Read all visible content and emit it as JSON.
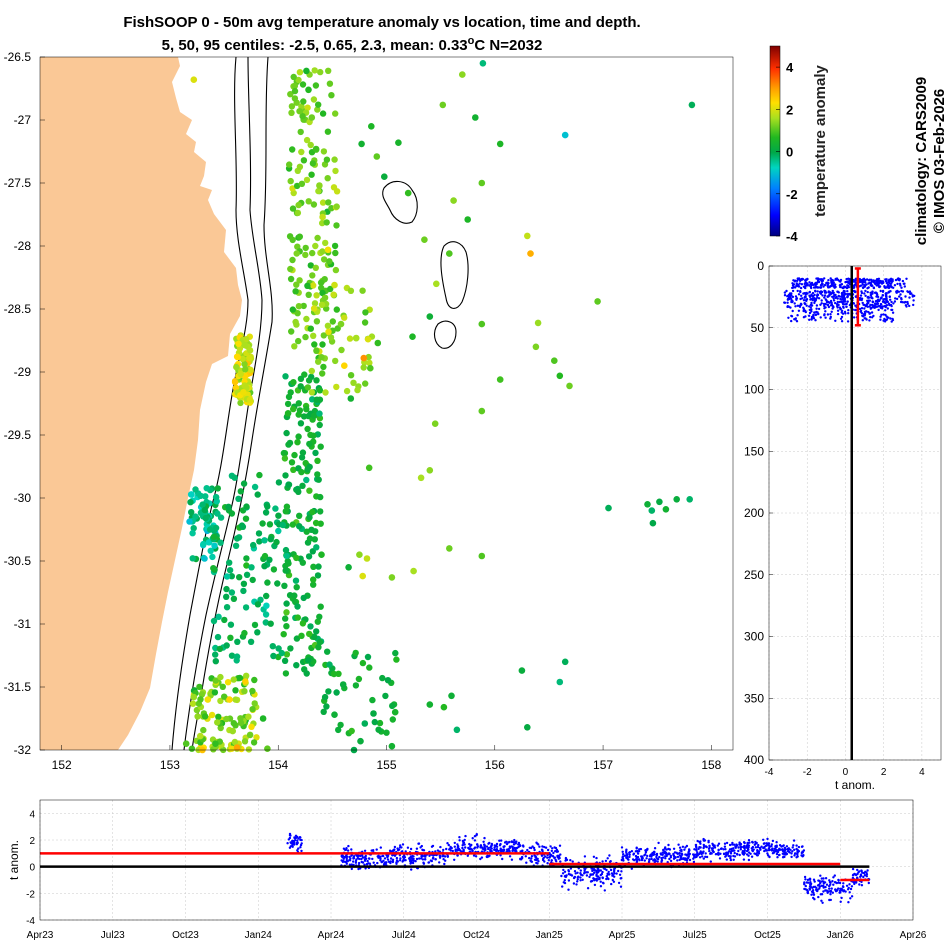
{
  "title": {
    "line1": "FishSOOP 0 - 50m avg temperature anomaly vs location, time and depth.",
    "line2_prefix": "5, 50, 95 centiles: -2.5, 0.65, 2.3, mean: 0.33",
    "line2_degree": "o",
    "line2_suffix": "C N=2032"
  },
  "side_note": {
    "line1": "climatology: CARS2009",
    "line2": "© IMOS 03-Feb-2026"
  },
  "colors": {
    "land": "#FAC896",
    "ocean": "#FFFFFF",
    "contour": "#000000",
    "scatter_blue": "#0000FF",
    "stat_red": "#FF0000",
    "zero_line": "#000000",
    "grid": "#C8C8C8"
  },
  "chart_data": [
    {
      "type": "scatter",
      "name": "map",
      "title": "FishSOOP 0 - 50m avg temperature anomaly vs location, time and depth.",
      "xlabel": "",
      "ylabel": "",
      "xlim": [
        151.8,
        158.2
      ],
      "ylim": [
        -32,
        -26.5
      ],
      "xticks": [
        152,
        153,
        154,
        155,
        156,
        157,
        158
      ],
      "yticks": [
        -26.5,
        -27,
        -27.5,
        -28,
        -28.5,
        -29,
        -29.5,
        -30,
        -30.5,
        -31,
        -31.5,
        -32
      ],
      "grid": false,
      "colorbar": {
        "label": "temperature anomaly",
        "range": [
          -4,
          5
        ],
        "ticks": [
          4,
          2,
          0,
          -2,
          -4
        ]
      },
      "points": [
        [
          153.22,
          -26.68,
          2.0
        ],
        [
          154.26,
          -26.61,
          0.5
        ],
        [
          154.28,
          -26.76,
          0.7
        ],
        [
          154.31,
          -26.98,
          1.2
        ],
        [
          154.35,
          -27.23,
          0.9
        ],
        [
          154.38,
          -27.52,
          1.4
        ],
        [
          154.41,
          -27.77,
          1.8
        ],
        [
          154.46,
          -28.03,
          2.2
        ],
        [
          154.52,
          -28.31,
          1.9
        ],
        [
          154.58,
          -28.62,
          1.3
        ],
        [
          154.61,
          -28.95,
          2.4
        ],
        [
          154.67,
          -29.21,
          0.4
        ],
        [
          154.72,
          -28.73,
          1.6
        ],
        [
          154.83,
          -28.74,
          2.0
        ],
        [
          154.79,
          -28.89,
          3.1
        ],
        [
          154.85,
          -28.97,
          1.0
        ],
        [
          154.92,
          -28.77,
          0.8
        ],
        [
          154.77,
          -27.19,
          0.4
        ],
        [
          154.86,
          -27.05,
          0.6
        ],
        [
          154.91,
          -27.29,
          1.1
        ],
        [
          154.98,
          -27.45,
          0.2
        ],
        [
          155.11,
          -27.18,
          0.5
        ],
        [
          155.2,
          -27.58,
          0.8
        ],
        [
          155.35,
          -27.95,
          1.2
        ],
        [
          155.46,
          -28.3,
          1.6
        ],
        [
          155.58,
          -28.06,
          1.0
        ],
        [
          155.62,
          -27.64,
          1.4
        ],
        [
          155.75,
          -27.79,
          0.6
        ],
        [
          155.88,
          -27.5,
          1.1
        ],
        [
          155.52,
          -26.88,
          1.2
        ],
        [
          155.7,
          -26.64,
          1.4
        ],
        [
          155.82,
          -26.98,
          0.4
        ],
        [
          155.89,
          -26.55,
          -0.3
        ],
        [
          156.05,
          -27.19,
          0.6
        ],
        [
          156.65,
          -27.12,
          -1.0
        ],
        [
          157.82,
          -26.88,
          -0.1
        ],
        [
          156.3,
          -27.92,
          1.8
        ],
        [
          156.33,
          -28.06,
          2.8
        ],
        [
          156.4,
          -28.61,
          1.5
        ],
        [
          156.38,
          -28.8,
          1.3
        ],
        [
          156.55,
          -28.91,
          1.0
        ],
        [
          156.6,
          -29.03,
          0.7
        ],
        [
          156.69,
          -29.11,
          1.2
        ],
        [
          156.95,
          -28.44,
          1.1
        ],
        [
          156.05,
          -29.06,
          0.9
        ],
        [
          155.88,
          -29.31,
          1.1
        ],
        [
          155.4,
          -29.78,
          1.4
        ],
        [
          155.32,
          -29.84,
          1.6
        ],
        [
          154.84,
          -29.76,
          0.9
        ],
        [
          155.4,
          -28.56,
          0.3
        ],
        [
          155.88,
          -28.62,
          1.0
        ],
        [
          155.24,
          -28.72,
          0.6
        ],
        [
          155.45,
          -29.41,
          1.3
        ],
        [
          154.75,
          -30.45,
          1.4
        ],
        [
          154.82,
          -30.48,
          1.8
        ],
        [
          154.78,
          -30.62,
          2.0
        ],
        [
          155.05,
          -30.63,
          1.3
        ],
        [
          155.25,
          -30.58,
          1.6
        ],
        [
          155.58,
          -30.4,
          1.2
        ],
        [
          154.4,
          -30.45,
          0.6
        ],
        [
          154.65,
          -30.55,
          0.3
        ],
        [
          155.88,
          -30.46,
          1.0
        ],
        [
          157.05,
          -30.08,
          -0.1
        ],
        [
          157.41,
          -30.05,
          0.3
        ],
        [
          157.45,
          -30.1,
          -0.2
        ],
        [
          157.52,
          -30.03,
          0.1
        ],
        [
          157.58,
          -30.09,
          0.4
        ],
        [
          157.46,
          -30.2,
          0.0
        ],
        [
          157.68,
          -30.01,
          0.2
        ],
        [
          157.8,
          -30.01,
          -0.2
        ],
        [
          156.25,
          -31.37,
          0.2
        ],
        [
          156.65,
          -31.3,
          -0.1
        ],
        [
          156.6,
          -31.46,
          -0.3
        ],
        [
          156.3,
          -31.82,
          0.1
        ],
        [
          155.65,
          -31.84,
          -0.2
        ],
        [
          155.6,
          -31.57,
          0.3
        ],
        [
          155.08,
          -31.7,
          0.5
        ],
        [
          155.4,
          -31.64,
          0.4
        ],
        [
          155.53,
          -31.66,
          0.7
        ],
        [
          154.88,
          -31.71,
          0.1
        ],
        [
          154.6,
          -31.48,
          0.2
        ],
        [
          154.52,
          -31.72,
          0.3
        ],
        [
          154.7,
          -32.0,
          0.0
        ],
        [
          154.76,
          -31.93,
          0.2
        ],
        [
          154.8,
          -31.79,
          -0.1
        ],
        [
          155.05,
          -31.97,
          0.4
        ],
        [
          153.35,
          -31.6,
          2.2
        ],
        [
          153.28,
          -31.89,
          1.7
        ],
        [
          153.42,
          -31.95,
          0.8
        ],
        [
          153.55,
          -31.6,
          2.4
        ],
        [
          153.58,
          -31.85,
          1.5
        ],
        [
          153.62,
          -31.98,
          2.9
        ],
        [
          153.74,
          -31.88,
          1.2
        ],
        [
          153.86,
          -31.75,
          0.6
        ],
        [
          153.9,
          -31.99,
          1.1
        ],
        [
          153.22,
          -31.58,
          1.5
        ],
        [
          153.15,
          -31.95,
          1.0
        ],
        [
          153.3,
          -32.0,
          2.6
        ]
      ],
      "contour_label": "shelf-edge isobaths"
    },
    {
      "type": "scatter",
      "name": "depth_profile",
      "title": "",
      "xlabel": "t anom.",
      "ylabel": "",
      "xlim": [
        -4,
        5
      ],
      "ylim": [
        400,
        0
      ],
      "xticks": [
        -4,
        -2,
        0,
        2,
        4
      ],
      "yticks": [
        0,
        50,
        100,
        150,
        200,
        250,
        300,
        350,
        400
      ],
      "grid": true,
      "mean_line_x": 0.33,
      "errorbar": {
        "x": 0.65,
        "y_low": 2,
        "y_high": 48
      },
      "points_depth_range": [
        10,
        45
      ],
      "points_anom_range": [
        -3.2,
        3.6
      ]
    },
    {
      "type": "scatter",
      "name": "time_series",
      "title": "",
      "xlabel": "",
      "ylabel": "t anom.",
      "ylim": [
        -4,
        5
      ],
      "yticks": [
        -4,
        -2,
        0,
        2,
        4
      ],
      "xticks": [
        "Apr23",
        "Jul23",
        "Oct23",
        "Jan24",
        "Apr24",
        "Jul24",
        "Oct24",
        "Jan25",
        "Apr25",
        "Jul25",
        "Oct25",
        "Jan26",
        "Apr26"
      ],
      "grid": true,
      "x_range_months": [
        0,
        36
      ],
      "segments_mean": [
        {
          "from": "Apr23",
          "to": "Jan25",
          "value": 1.0
        },
        {
          "from": "Jan25",
          "to": "Jan26",
          "value": 0.2
        },
        {
          "from": "Jan26",
          "to": "Feb26",
          "value": -1.0
        }
      ],
      "clusters": [
        {
          "from_month": 10.2,
          "to_month": 10.8,
          "center": 1.8,
          "spread": 0.9
        },
        {
          "from_month": 12.4,
          "to_month": 14.5,
          "center": 0.6,
          "spread": 1.0
        },
        {
          "from_month": 14.5,
          "to_month": 16.8,
          "center": 0.8,
          "spread": 1.0
        },
        {
          "from_month": 16.8,
          "to_month": 19.8,
          "center": 1.4,
          "spread": 0.9
        },
        {
          "from_month": 19.8,
          "to_month": 21.5,
          "center": 0.9,
          "spread": 1.1
        },
        {
          "from_month": 21.5,
          "to_month": 24.0,
          "center": -0.4,
          "spread": 1.4
        },
        {
          "from_month": 24.0,
          "to_month": 27.0,
          "center": 0.8,
          "spread": 0.9
        },
        {
          "from_month": 27.0,
          "to_month": 30.0,
          "center": 1.3,
          "spread": 0.9
        },
        {
          "from_month": 30.0,
          "to_month": 31.5,
          "center": 1.2,
          "spread": 0.8
        },
        {
          "from_month": 31.5,
          "to_month": 33.5,
          "center": -1.6,
          "spread": 1.1
        },
        {
          "from_month": 33.5,
          "to_month": 34.2,
          "center": -0.8,
          "spread": 0.8
        }
      ]
    }
  ]
}
